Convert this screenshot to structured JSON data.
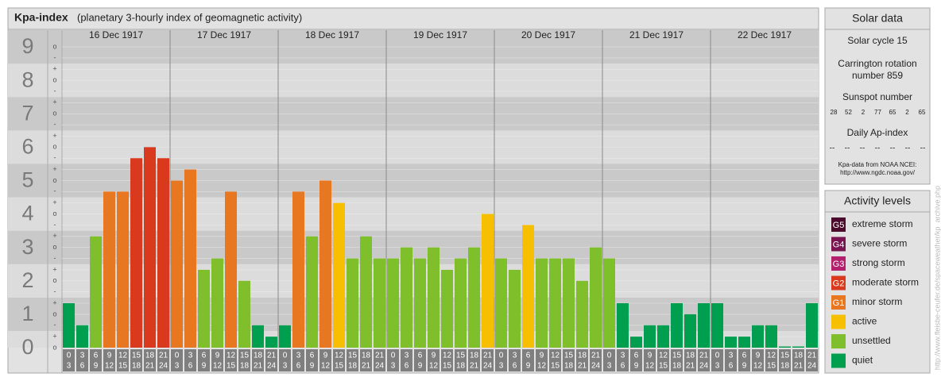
{
  "chart_data": {
    "type": "bar",
    "title": "Kpa-index",
    "subtitle": "(planetary 3-hourly index of geomagnetic activity)",
    "ylim": [
      0,
      9.5
    ],
    "yticks": [
      0,
      1,
      2,
      3,
      4,
      5,
      6,
      7,
      8,
      9
    ],
    "minor_yticks": [
      {
        "value": 0,
        "label": "o"
      },
      {
        "value": 0.33,
        "label": "+"
      },
      {
        "value": 0.67,
        "label": "-"
      },
      {
        "value": 1,
        "label": "o"
      },
      {
        "value": 1.33,
        "label": "+"
      },
      {
        "value": 1.67,
        "label": "-"
      },
      {
        "value": 2,
        "label": "o"
      },
      {
        "value": 2.33,
        "label": "+"
      },
      {
        "value": 2.67,
        "label": "-"
      },
      {
        "value": 3,
        "label": "o"
      },
      {
        "value": 3.33,
        "label": "+"
      },
      {
        "value": 3.67,
        "label": "-"
      },
      {
        "value": 4,
        "label": "o"
      },
      {
        "value": 4.33,
        "label": "+"
      },
      {
        "value": 4.67,
        "label": "-"
      },
      {
        "value": 5,
        "label": "o"
      },
      {
        "value": 5.33,
        "label": "+"
      },
      {
        "value": 5.67,
        "label": "-"
      },
      {
        "value": 6,
        "label": "o"
      },
      {
        "value": 6.33,
        "label": "+"
      },
      {
        "value": 6.67,
        "label": "-"
      },
      {
        "value": 7,
        "label": "o"
      },
      {
        "value": 7.33,
        "label": "+"
      },
      {
        "value": 7.67,
        "label": "-"
      },
      {
        "value": 8,
        "label": "o"
      },
      {
        "value": 8.33,
        "label": "+"
      },
      {
        "value": 8.67,
        "label": "-"
      },
      {
        "value": 9,
        "label": "o"
      }
    ],
    "hour_ranges": [
      [
        0,
        3
      ],
      [
        3,
        6
      ],
      [
        6,
        9
      ],
      [
        9,
        12
      ],
      [
        12,
        15
      ],
      [
        15,
        18
      ],
      [
        18,
        21
      ],
      [
        21,
        24
      ]
    ],
    "days": [
      {
        "name": "16 Dec 1917",
        "values": [
          1.33,
          0.67,
          3.33,
          4.67,
          4.67,
          5.67,
          6,
          5.67
        ],
        "colors": [
          "#009e4f",
          "#009e4f",
          "#7ebf2b",
          "#e87722",
          "#e87722",
          "#d93a1e",
          "#d93a1e",
          "#d93a1e"
        ]
      },
      {
        "name": "17 Dec 1917",
        "values": [
          5,
          5.33,
          2.33,
          2.67,
          4.67,
          2,
          0.67,
          0.33
        ],
        "colors": [
          "#e87722",
          "#e87722",
          "#7ebf2b",
          "#7ebf2b",
          "#e87722",
          "#7ebf2b",
          "#009e4f",
          "#009e4f"
        ]
      },
      {
        "name": "18 Dec 1917",
        "values": [
          0.67,
          4.67,
          3.33,
          5,
          4.33,
          2.67,
          3.33,
          2.67
        ],
        "colors": [
          "#009e4f",
          "#e87722",
          "#7ebf2b",
          "#e87722",
          "#f6c000",
          "#7ebf2b",
          "#7ebf2b",
          "#7ebf2b"
        ]
      },
      {
        "name": "19 Dec 1917",
        "values": [
          2.67,
          3,
          2.67,
          3,
          2.33,
          2.67,
          3,
          4
        ],
        "colors": [
          "#7ebf2b",
          "#7ebf2b",
          "#7ebf2b",
          "#7ebf2b",
          "#7ebf2b",
          "#7ebf2b",
          "#7ebf2b",
          "#f6c000"
        ]
      },
      {
        "name": "20 Dec 1917",
        "values": [
          2.67,
          2.33,
          3.67,
          2.67,
          2.67,
          2.67,
          2,
          3
        ],
        "colors": [
          "#7ebf2b",
          "#7ebf2b",
          "#f6c000",
          "#7ebf2b",
          "#7ebf2b",
          "#7ebf2b",
          "#7ebf2b",
          "#7ebf2b"
        ]
      },
      {
        "name": "21 Dec 1917",
        "values": [
          2.67,
          1.33,
          0.33,
          0.67,
          0.67,
          1.33,
          1,
          1.33
        ],
        "colors": [
          "#7ebf2b",
          "#009e4f",
          "#009e4f",
          "#009e4f",
          "#009e4f",
          "#009e4f",
          "#009e4f",
          "#009e4f"
        ]
      },
      {
        "name": "22 Dec 1917",
        "values": [
          1.33,
          0.33,
          0.33,
          0.67,
          0.67,
          0,
          0,
          1.33
        ],
        "colors": [
          "#009e4f",
          "#009e4f",
          "#009e4f",
          "#009e4f",
          "#009e4f",
          "#009e4f",
          "#009e4f",
          "#009e4f"
        ]
      }
    ]
  },
  "solar": {
    "title": "Solar data",
    "cycle": "Solar cycle 15",
    "carrington": [
      "Carrington rotation",
      "number 859"
    ],
    "sunspot_label": "Sunspot number",
    "sunspots": [
      28,
      52,
      2,
      77,
      65,
      2,
      65
    ],
    "ap_label": "Daily Ap-index",
    "ap": [
      "--",
      "--",
      "--",
      "--",
      "--",
      "--",
      "--"
    ],
    "source": [
      "Kpa-data from NOAA NCEI:",
      "http://www.ngdc.noaa.gov/"
    ]
  },
  "activity": {
    "title": "Activity levels",
    "levels": [
      {
        "badge": "G5",
        "label": "extreme storm",
        "color": "#4a0b2c"
      },
      {
        "badge": "G4",
        "label": "severe storm",
        "color": "#7a1352"
      },
      {
        "badge": "G3",
        "label": "strong storm",
        "color": "#b3206e"
      },
      {
        "badge": "G2",
        "label": "moderate storm",
        "color": "#d93a1e"
      },
      {
        "badge": "G1",
        "label": "minor storm",
        "color": "#e87722"
      },
      {
        "label": "active",
        "color": "#f6c000"
      },
      {
        "label": "unsettled",
        "color": "#7ebf2b"
      },
      {
        "label": "quiet",
        "color": "#009e4f"
      }
    ]
  },
  "watermark": "http://www.fleisbe-ceufer.de/spaceweather/kp_archive.php"
}
